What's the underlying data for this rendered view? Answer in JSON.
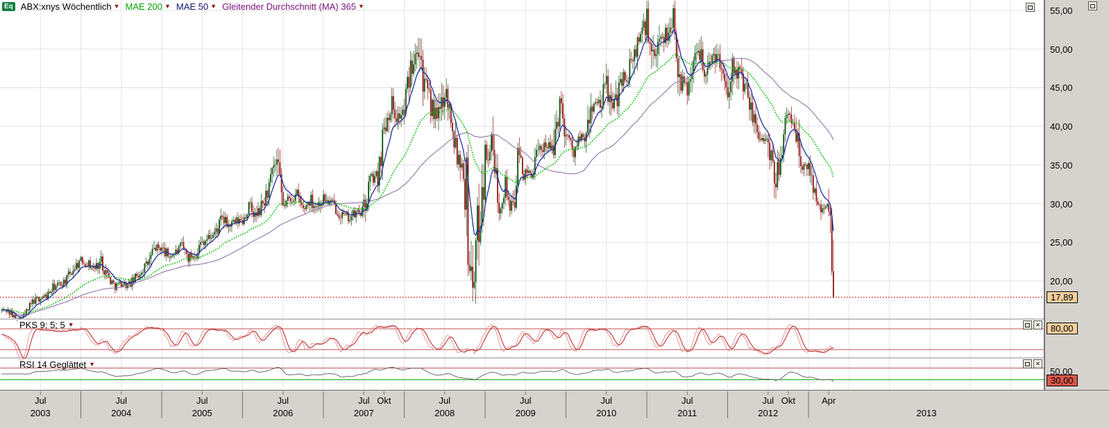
{
  "legend": {
    "badge": "Eq",
    "symbol": "ABX:xnys Wöchentlich",
    "ma200": "MAE 200",
    "ma50": "MAE 50",
    "ma365": "Gleitender Durchschnitt (MA) 365"
  },
  "panels": {
    "pks": {
      "title": "PKS 9; 5; 5"
    },
    "rsi": {
      "title": "RSI 14 Geglättet"
    }
  },
  "price_axis": {
    "ticks": [
      {
        "label": "55,00",
        "value": 55
      },
      {
        "label": "50,00",
        "value": 50
      },
      {
        "label": "45,00",
        "value": 45
      },
      {
        "label": "40,00",
        "value": 40
      },
      {
        "label": "35,00",
        "value": 35
      },
      {
        "label": "30,00",
        "value": 30
      },
      {
        "label": "25,00",
        "value": 25
      },
      {
        "label": "20,00",
        "value": 20
      }
    ],
    "current": {
      "label": "17,89",
      "value": 17.89
    }
  },
  "pks_axis": {
    "level": {
      "label": "80,00",
      "value": 80
    }
  },
  "rsi_axis": {
    "mid": {
      "label": "50,00",
      "value": 50
    },
    "current": {
      "label": "30,00",
      "value": 30
    }
  },
  "time_axis": {
    "months": [
      {
        "label": "Jul",
        "t": 2003.5
      },
      {
        "label": "Jul",
        "t": 2004.5
      },
      {
        "label": "Jul",
        "t": 2005.5
      },
      {
        "label": "Jul",
        "t": 2006.5
      },
      {
        "label": "Jul",
        "t": 2007.5
      },
      {
        "label": "Okt",
        "t": 2007.75
      },
      {
        "label": "Jul",
        "t": 2008.5
      },
      {
        "label": "Jul",
        "t": 2009.5
      },
      {
        "label": "Jul",
        "t": 2010.5
      },
      {
        "label": "Jul",
        "t": 2011.5
      },
      {
        "label": "Jul",
        "t": 2012.5
      },
      {
        "label": "Okt",
        "t": 2012.75
      },
      {
        "label": "Apr",
        "t": 2013.25
      }
    ],
    "years": [
      {
        "label": "2003",
        "start": 2003
      },
      {
        "label": "2004",
        "start": 2004
      },
      {
        "label": "2005",
        "start": 2005
      },
      {
        "label": "2006",
        "start": 2006
      },
      {
        "label": "2007",
        "start": 2007
      },
      {
        "label": "2008",
        "start": 2008
      },
      {
        "label": "2009",
        "start": 2009
      },
      {
        "label": "2010",
        "start": 2010
      },
      {
        "label": "2011",
        "start": 2011
      },
      {
        "label": "2012",
        "start": 2012
      },
      {
        "label": "2013",
        "start": 2013
      }
    ]
  },
  "ui": {
    "close_glyph": "✕"
  },
  "colors": {
    "ma200": "#00c000",
    "ma50": "#1c2f9e",
    "ma365": "#9b7fae",
    "candle_up": "#0a4f0a",
    "candle_down": "#8f1212",
    "current_line": "#d40000",
    "current_box_bg": "#f2cf9c",
    "rsi_box_bg": "#d9564a",
    "pks_line": "#c03030",
    "pks_line_light": "#e09090",
    "rsi_line": "#6a6a6a",
    "level_red": "#c05050",
    "level_green": "#00a000",
    "grid": "#e6e6e6",
    "axis_bg": "#d6d3ce"
  },
  "chart_data": {
    "type": "candlestick",
    "title": "ABX:xnys Wöchentlich",
    "symbol": "ABX:xnys",
    "interval": "weekly",
    "x_range": [
      2003.0,
      2013.31
    ],
    "y_range": [
      15,
      56.5
    ],
    "y_axis_ticks": [
      55,
      50,
      45,
      40,
      35,
      30,
      25,
      20
    ],
    "last_price": 17.89,
    "monthly_close_start": "2003-01",
    "monthly_closes": [
      16.2,
      15.4,
      14.8,
      16.0,
      17.4,
      17.8,
      18.1,
      19.2,
      19.6,
      20.3,
      21.8,
      22.6,
      22.3,
      21.6,
      22.6,
      20.6,
      19.3,
      19.7,
      19.4,
      20.2,
      21.4,
      22.3,
      24.3,
      24.2,
      23.2,
      23.6,
      24.4,
      23.0,
      23.6,
      25.1,
      25.6,
      26.3,
      28.0,
      27.1,
      27.6,
      27.9,
      29.6,
      28.2,
      29.9,
      32.3,
      35.4,
      29.7,
      30.6,
      31.1,
      29.2,
      30.6,
      29.7,
      30.7,
      30.1,
      29.3,
      28.3,
      28.2,
      28.8,
      29.1,
      33.2,
      33.6,
      39.8,
      43.2,
      41.2,
      42.0,
      48.0,
      52.0,
      45.3,
      42.6,
      40.6,
      45.2,
      41.2,
      36.4,
      34.3,
      19.0,
      27.4,
      36.2,
      38.0,
      29.6,
      32.6,
      28.6,
      36.2,
      33.6,
      34.2,
      36.6,
      38.2,
      36.4,
      43.2,
      39.4,
      36.6,
      38.2,
      38.4,
      43.4,
      42.2,
      45.4,
      41.6,
      46.2,
      46.4,
      48.4,
      52.2,
      53.2,
      47.2,
      52.2,
      51.6,
      54.6,
      45.6,
      45.2,
      48.4,
      50.2,
      46.6,
      50.2,
      47.6,
      45.2,
      48.6,
      46.2,
      43.6,
      40.2,
      38.6,
      37.6,
      31.9,
      37.6,
      41.4,
      40.2,
      34.2,
      35.0,
      31.6,
      29.6,
      29.2,
      17.89
    ],
    "overlays": [
      {
        "name": "MAE 200",
        "type": "ema",
        "period": 200,
        "color": "#00c000"
      },
      {
        "name": "MAE 50",
        "type": "ema",
        "period": 50,
        "color": "#1c2f9e"
      },
      {
        "name": "Gleitender Durchschnitt (MA) 365",
        "type": "sma",
        "period": 365,
        "color": "#9b7fae"
      }
    ],
    "indicators": [
      {
        "name": "PKS 9; 5; 5",
        "params": [
          9,
          5,
          5
        ],
        "levels": [
          80,
          20
        ],
        "color": "#c03030"
      },
      {
        "name": "RSI 14 Geglättet",
        "period": 14,
        "levels": [
          70,
          50,
          30
        ],
        "current": 30,
        "color": "#6a6a6a"
      }
    ],
    "current_price_line": {
      "value": 17.89,
      "style": "dotted",
      "color": "#d40000"
    }
  }
}
